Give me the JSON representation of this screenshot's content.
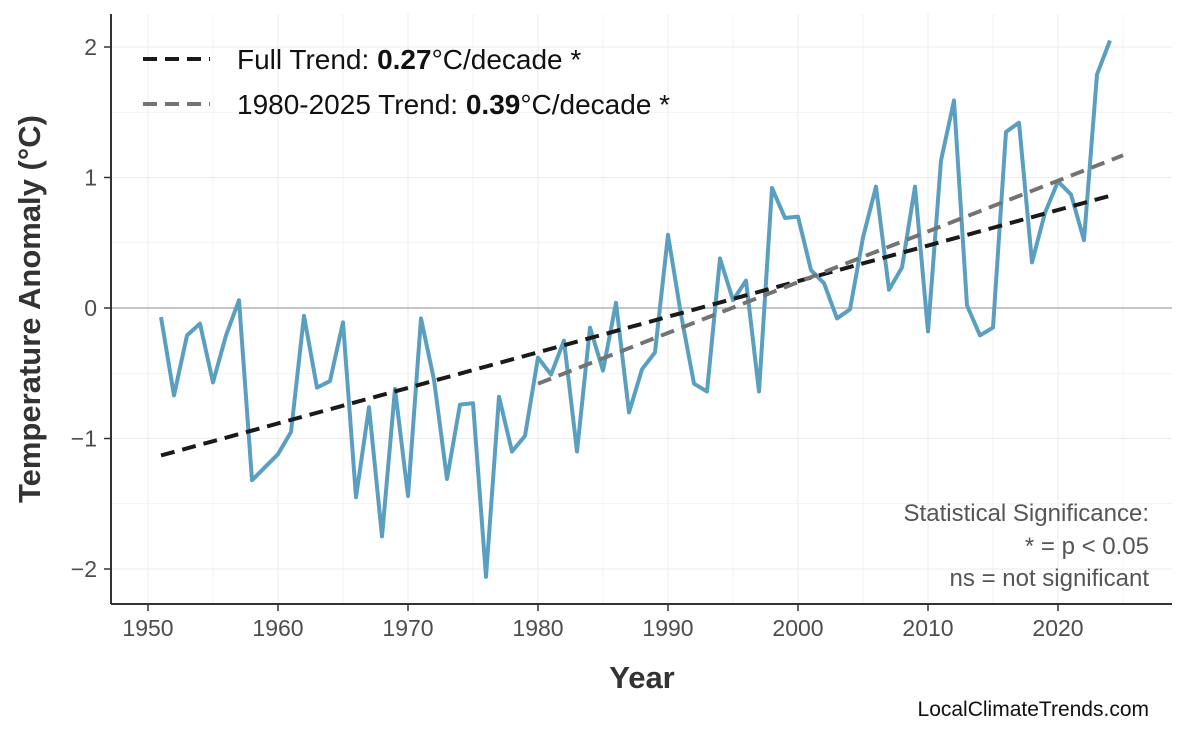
{
  "chart_data": {
    "type": "line",
    "xlabel": "Year",
    "ylabel": "Temperature Anomaly (°C)",
    "xlim": [
      1947,
      2028.5
    ],
    "ylim": [
      -2.27,
      2.25
    ],
    "x_ticks": [
      1950,
      1960,
      1970,
      1980,
      1990,
      2000,
      2010,
      2020
    ],
    "y_ticks": [
      -2,
      -1,
      0,
      1,
      2
    ],
    "y_tick_labels": [
      "−2",
      "−1",
      "0",
      "1",
      "2"
    ],
    "grid": true,
    "legend_position": "top-left",
    "series": [
      {
        "color": "#5a9fc0",
        "x": [
          1951,
          1952,
          1953,
          1954,
          1955,
          1956,
          1957,
          1958,
          1959,
          1960,
          1961,
          1962,
          1963,
          1964,
          1965,
          1966,
          1967,
          1968,
          1969,
          1970,
          1971,
          1972,
          1973,
          1974,
          1975,
          1976,
          1977,
          1978,
          1979,
          1980,
          1981,
          1982,
          1983,
          1984,
          1985,
          1986,
          1987,
          1988,
          1989,
          1990,
          1991,
          1992,
          1993,
          1994,
          1995,
          1996,
          1997,
          1998,
          1999,
          2000,
          2001,
          2002,
          2003,
          2004,
          2005,
          2006,
          2007,
          2008,
          2009,
          2010,
          2011,
          2012,
          2013,
          2014,
          2015,
          2016,
          2017,
          2018,
          2019,
          2020,
          2021,
          2022,
          2023,
          2024
        ],
        "values": [
          -0.07,
          -0.67,
          -0.21,
          -0.12,
          -0.57,
          -0.21,
          0.06,
          -1.32,
          -1.22,
          -1.12,
          -0.95,
          -0.06,
          -0.61,
          -0.56,
          -0.11,
          -1.45,
          -0.76,
          -1.75,
          -0.62,
          -1.44,
          -0.08,
          -0.55,
          -1.31,
          -0.74,
          -0.73,
          -2.06,
          -0.68,
          -1.1,
          -0.98,
          -0.38,
          -0.51,
          -0.25,
          -1.1,
          -0.15,
          -0.48,
          0.04,
          -0.8,
          -0.47,
          -0.34,
          0.56,
          -0.05,
          -0.58,
          -0.64,
          0.38,
          0.06,
          0.21,
          -0.64,
          0.92,
          0.69,
          0.7,
          0.29,
          0.19,
          -0.08,
          -0.01,
          0.54,
          0.93,
          0.14,
          0.31,
          0.93,
          -0.18,
          1.13,
          1.59,
          0.02,
          -0.21,
          -0.15,
          1.35,
          1.42,
          0.35,
          0.73,
          0.97,
          0.87,
          0.52,
          1.79,
          2.05
        ]
      },
      {
        "name": "Full Trend",
        "color": "#1a1a1a",
        "dash": true,
        "x": [
          1951,
          2024
        ],
        "values": [
          -1.13,
          0.86
        ]
      },
      {
        "name": "1980-2025 Trend",
        "color": "#737373",
        "dash": true,
        "x": [
          1980,
          2025
        ],
        "values": [
          -0.58,
          1.17
        ]
      }
    ],
    "legend": [
      {
        "prefix": "Full Trend: ",
        "value": "0.27",
        "suffix": "°C/decade *"
      },
      {
        "prefix": "1980-2025 Trend: ",
        "value": "0.39",
        "suffix": "°C/decade *"
      }
    ],
    "annotation": [
      "Statistical Significance:",
      "* = p < 0.05",
      "ns = not significant"
    ],
    "credit": "LocalClimateTrends.com"
  }
}
